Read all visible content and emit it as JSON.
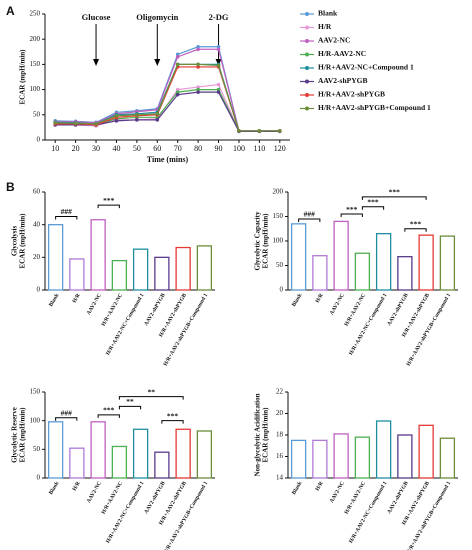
{
  "chart_data": [
    {
      "type": "line",
      "panel_label": "A",
      "xlabel": "Time (mins)",
      "ylabel": [
        "ECAR (mpH/min)"
      ],
      "x": [
        10,
        20,
        30,
        40,
        50,
        60,
        70,
        80,
        90,
        100,
        110,
        120
      ],
      "xlim": [
        5,
        125
      ],
      "xticks": [
        10,
        20,
        30,
        40,
        50,
        60,
        70,
        80,
        90,
        100,
        110,
        120
      ],
      "ylim": [
        0,
        250
      ],
      "yticks": [
        0,
        50,
        100,
        150,
        200,
        250
      ],
      "annotations": [
        {
          "label": "Glucose",
          "x": 30
        },
        {
          "label": "Oligomycin",
          "x": 60
        },
        {
          "label": "2-DG",
          "x": 90
        }
      ],
      "series": [
        {
          "name": "Blank",
          "color": "#5b9bd5",
          "values": [
            38,
            37,
            35,
            55,
            58,
            62,
            170,
            185,
            185,
            18,
            18,
            18
          ]
        },
        {
          "name": "H/R",
          "color": "#e89ad8",
          "values": [
            30,
            30,
            28,
            40,
            40,
            42,
            100,
            105,
            110,
            18,
            18,
            18
          ]
        },
        {
          "name": "AAV2-NC",
          "color": "#c060c0",
          "values": [
            36,
            36,
            34,
            52,
            56,
            60,
            165,
            180,
            180,
            18,
            18,
            18
          ]
        },
        {
          "name": "H/R-AAV2-NC",
          "color": "#4caf50",
          "values": [
            32,
            31,
            30,
            42,
            45,
            45,
            95,
            100,
            100,
            18,
            18,
            18
          ]
        },
        {
          "name": "H/R+AAV2-NC+Compound 1",
          "color": "#1f8fa0",
          "values": [
            35,
            34,
            32,
            50,
            52,
            55,
            150,
            150,
            150,
            18,
            18,
            18
          ]
        },
        {
          "name": "AAV2-shPYGB",
          "color": "#5a3a8a",
          "values": [
            30,
            30,
            30,
            38,
            40,
            40,
            90,
            95,
            95,
            17,
            17,
            17
          ]
        },
        {
          "name": "H/R+AAV2-shPYGB",
          "color": "#e53935",
          "values": [
            32,
            32,
            30,
            45,
            48,
            50,
            145,
            145,
            145,
            18,
            18,
            18
          ]
        },
        {
          "name": "H/R+AAV2-shPYGB+Compound 1",
          "color": "#6b8e3a",
          "values": [
            34,
            33,
            32,
            48,
            50,
            52,
            150,
            150,
            148,
            18,
            18,
            18
          ]
        }
      ]
    },
    {
      "type": "bar",
      "panel_label": "B",
      "ylabel": [
        "Glycolysis",
        "ECAR (mpH/min)"
      ],
      "categories": [
        "Blank",
        "H/R",
        "AAV2-NC",
        "H/R+AAV2-NC",
        "H/R+AAV2-NC+Compound 1",
        "AAV2-shPYGB",
        "H/R+AAV2-shPYGB",
        "H/R+AAV2-shPYGB+Compound 1"
      ],
      "colors": [
        "#5b9bd5",
        "#b07ad8",
        "#c060c0",
        "#4caf50",
        "#1f8fa0",
        "#5a3a8a",
        "#e53935",
        "#6b8e3a"
      ],
      "values": [
        40,
        19,
        43,
        18,
        25,
        20,
        26,
        27
      ],
      "ylim": [
        0,
        60
      ],
      "yticks": [
        0,
        20,
        40,
        60
      ],
      "brackets": [
        {
          "label": "###",
          "from": 0,
          "to": 1,
          "y": 45
        },
        {
          "label": "***",
          "from": 2,
          "to": 3,
          "y": 52
        }
      ]
    },
    {
      "type": "bar",
      "ylabel": [
        "Glycolytic Capacity",
        "ECAR (mpH/min)"
      ],
      "categories": [
        "Blank",
        "H/R",
        "AAV2-NC",
        "H/R+AAV2-NC",
        "H/R+AAV2-NC+Compound 1",
        "AAV2-shPYGB",
        "H/R+AAV2-shPYGB",
        "H/R+AAV2-shPYGB+Compound 1"
      ],
      "colors": [
        "#5b9bd5",
        "#b07ad8",
        "#c060c0",
        "#4caf50",
        "#1f8fa0",
        "#5a3a8a",
        "#e53935",
        "#6b8e3a"
      ],
      "values": [
        135,
        70,
        140,
        75,
        115,
        68,
        112,
        110
      ],
      "ylim": [
        0,
        200
      ],
      "yticks": [
        0,
        50,
        100,
        150,
        200
      ],
      "brackets": [
        {
          "label": "###",
          "from": 0,
          "to": 1,
          "y": 145
        },
        {
          "label": "***",
          "from": 2,
          "to": 3,
          "y": 155
        },
        {
          "label": "***",
          "from": 3,
          "to": 4,
          "y": 170
        },
        {
          "label": "***",
          "from": 3,
          "to": 6,
          "y": 190
        },
        {
          "label": "***",
          "from": 5,
          "to": 6,
          "y": 125
        }
      ]
    },
    {
      "type": "bar",
      "ylabel": [
        "Glycolytic Reserve",
        "ECAR (mpH/min)"
      ],
      "categories": [
        "Blank",
        "H/R",
        "AAV2-NC",
        "H/R+AAV2-NC",
        "H/R+AAV2-NC+Compound 1",
        "AAV2-shPYGB",
        "H/R+AAV2-shPYGB",
        "H/R+AAV2-shPYGB+Compound 1"
      ],
      "colors": [
        "#5b9bd5",
        "#b07ad8",
        "#c060c0",
        "#4caf50",
        "#1f8fa0",
        "#5a3a8a",
        "#e53935",
        "#6b8e3a"
      ],
      "values": [
        98,
        52,
        98,
        55,
        85,
        45,
        85,
        82
      ],
      "ylim": [
        0,
        150
      ],
      "yticks": [
        0,
        50,
        100,
        150
      ],
      "brackets": [
        {
          "label": "###",
          "from": 0,
          "to": 1,
          "y": 105
        },
        {
          "label": "***",
          "from": 2,
          "to": 3,
          "y": 110
        },
        {
          "label": "**",
          "from": 3,
          "to": 4,
          "y": 125
        },
        {
          "label": "**",
          "from": 3,
          "to": 6,
          "y": 142
        },
        {
          "label": "***",
          "from": 5,
          "to": 6,
          "y": 100
        }
      ]
    },
    {
      "type": "bar",
      "ylabel": [
        "Non-glycolytic Acidification",
        "ECAR (mpH/min)"
      ],
      "categories": [
        "Blank",
        "H/R",
        "AAV2-NC",
        "H/R+AAV2-NC",
        "H/R+AAV2-NC+Compound 1",
        "AAV2-shPYGB",
        "H/R+AAV2-shPYGB",
        "H/R+AAV2-shPYGB+Compound 1"
      ],
      "colors": [
        "#5b9bd5",
        "#b07ad8",
        "#c060c0",
        "#4caf50",
        "#1f8fa0",
        "#5a3a8a",
        "#e53935",
        "#6b8e3a"
      ],
      "values": [
        17.5,
        17.5,
        18.1,
        17.8,
        19.3,
        18,
        18.9,
        17.7
      ],
      "ylim": [
        14,
        22
      ],
      "yticks": [
        14,
        16,
        18,
        20,
        22
      ],
      "brackets": []
    }
  ]
}
